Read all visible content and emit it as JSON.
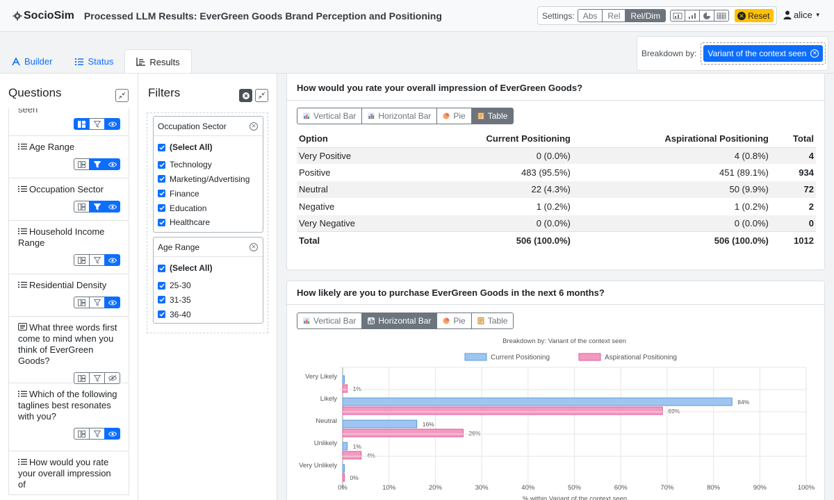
{
  "app": {
    "brand": "SocioSim",
    "page_title": "Processed LLM Results: EverGreen Goods Brand Perception and Positioning",
    "user": "alice"
  },
  "settings": {
    "label": "Settings:",
    "modes": [
      "Abs",
      "Rel",
      "Rel/Dim"
    ],
    "active_mode": "Rel/Dim",
    "view_icons": [
      "vertical-bar-view-icon",
      "bar-view-icon",
      "pie-view-icon",
      "table-view-icon"
    ],
    "reset_label": "Reset"
  },
  "tabs": [
    {
      "label": "Builder",
      "icon": "builder-icon"
    },
    {
      "label": "Status",
      "icon": "status-icon"
    },
    {
      "label": "Results",
      "icon": "results-icon",
      "active": true
    }
  ],
  "breakdown": {
    "label": "Breakdown by:",
    "value": "Variant of the context seen"
  },
  "questions_panel": {
    "title": "Questions",
    "truncated_top": "seen",
    "items": [
      {
        "text": "",
        "icon": "list-icon",
        "states": [
          "on",
          "off",
          "on"
        ]
      },
      {
        "text": "Age Range",
        "icon": "list-icon",
        "states": [
          "off",
          "on",
          "on"
        ]
      },
      {
        "text": "Occupation Sector",
        "icon": "list-icon",
        "states": [
          "off",
          "on",
          "on"
        ]
      },
      {
        "text": "Household Income Range",
        "icon": "list-icon",
        "states": [
          "off",
          "off",
          "on"
        ]
      },
      {
        "text": "Residential Density",
        "icon": "list-icon",
        "states": [
          "off",
          "off",
          "on"
        ]
      },
      {
        "text": "What three words first come to mind when you think of EverGreen Goods?",
        "icon": "text-icon",
        "states": [
          "off",
          "off",
          "hidden"
        ]
      },
      {
        "text": "Which of the following taglines best resonates with you?",
        "icon": "list-icon",
        "states": [
          "off",
          "off",
          "on"
        ]
      },
      {
        "text": "How would you rate your overall impression of",
        "icon": "list-icon",
        "states": []
      }
    ]
  },
  "filters_panel": {
    "title": "Filters",
    "cards": [
      {
        "title": "Occupation Sector",
        "options": [
          "(Select All)",
          "Technology",
          "Marketing/Advertising",
          "Finance",
          "Education",
          "Healthcare"
        ]
      },
      {
        "title": "Age Range",
        "options": [
          "(Select All)",
          "25-30",
          "31-35",
          "36-40"
        ]
      }
    ]
  },
  "results": {
    "q1": {
      "title": "How would you rate your overall impression of EverGreen Goods?",
      "chart_tabs": [
        "Vertical Bar",
        "Horizontal Bar",
        "Pie",
        "Table"
      ],
      "active_tab": "Table",
      "table": {
        "headers": [
          "Option",
          "Current Positioning",
          "Aspirational Positioning",
          "Total"
        ],
        "rows": [
          [
            "Very Positive",
            "0 (0.0%)",
            "4 (0.8%)",
            "4"
          ],
          [
            "Positive",
            "483 (95.5%)",
            "451 (89.1%)",
            "934"
          ],
          [
            "Neutral",
            "22 (4.3%)",
            "50 (9.9%)",
            "72"
          ],
          [
            "Negative",
            "1 (0.2%)",
            "1 (0.2%)",
            "2"
          ],
          [
            "Very Negative",
            "0 (0.0%)",
            "0 (0.0%)",
            "0"
          ]
        ],
        "total": [
          "Total",
          "506 (100.0%)",
          "506 (100.0%)",
          "1012"
        ]
      }
    },
    "q2": {
      "title": "How likely are you to purchase EverGreen Goods in the next 6 months?",
      "chart_tabs": [
        "Vertical Bar",
        "Horizontal Bar",
        "Pie",
        "Table"
      ],
      "active_tab": "Horizontal Bar"
    }
  },
  "chart_data": {
    "type": "bar",
    "orientation": "horizontal",
    "title": "Breakdown by: Variant of the context seen",
    "categories": [
      "Very Likely",
      "Likely",
      "Neutral",
      "Unlikely",
      "Very Unlikely"
    ],
    "series": [
      {
        "name": "Current Positioning",
        "values": [
          0,
          84,
          16,
          1,
          0
        ],
        "color": "#9ec5f0",
        "border": "#5b9bd5",
        "labels": [
          "",
          "84%",
          "16%",
          "1%",
          ""
        ]
      },
      {
        "name": "Aspirational Positioning",
        "values": [
          1,
          69,
          26,
          4,
          0
        ],
        "color": "#f49ac1",
        "border": "#e05a9a",
        "labels": [
          "1%",
          "69%",
          "26%",
          "4%",
          "0%"
        ]
      }
    ],
    "xlim": [
      0,
      100
    ],
    "xticks": [
      "0%",
      "10%",
      "20%",
      "30%",
      "40%",
      "50%",
      "60%",
      "70%",
      "80%",
      "90%",
      "100%"
    ],
    "xlabel": "% within Variant of the context seen",
    "legend": "top",
    "grid": true
  }
}
